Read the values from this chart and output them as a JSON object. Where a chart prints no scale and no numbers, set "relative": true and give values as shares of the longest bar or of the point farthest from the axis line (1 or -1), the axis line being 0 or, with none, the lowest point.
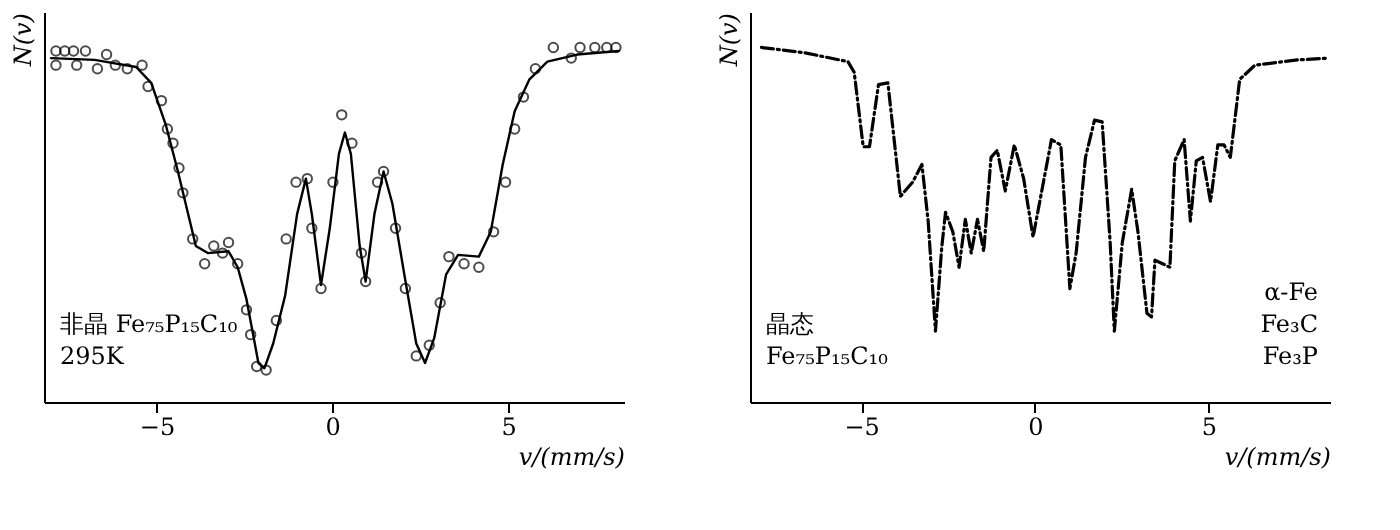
{
  "chart_data": [
    {
      "type": "scatter",
      "ylabel": "N(v)",
      "xlabel": "v/(mm/s)",
      "relative": true,
      "xlim": [
        -8.2,
        8.3
      ],
      "xticks": [
        -5,
        0,
        5
      ],
      "annotations": [
        "非晶 Fe₇₅P₁₅C₁₀\n295K"
      ],
      "series": [
        {
          "type": "scatter",
          "marker": "circle",
          "color": "#000000",
          "x": [
            -7.86,
            -7.61,
            -7.36,
            -7.02,
            -7.86,
            -7.27,
            -6.68,
            -6.42,
            -6.17,
            -5.83,
            -5.41,
            -5.24,
            -4.86,
            -4.69,
            -4.53,
            -4.36,
            -4.25,
            -3.97,
            -3.63,
            -3.37,
            -3.12,
            -2.95,
            -2.69,
            -2.44,
            -2.32,
            -2.15,
            -1.88,
            -1.59,
            -1.31,
            -1.03,
            -0.71,
            -0.58,
            -0.32,
            0.02,
            0.27,
            0.56,
            0.83,
            0.95,
            1.29,
            1.46,
            1.8,
            2.08,
            2.39,
            2.76,
            3.07,
            3.32,
            3.75,
            4.17,
            4.59,
            4.93,
            5.19,
            5.44,
            5.78,
            6.29,
            6.8,
            7.05,
            7.47,
            7.81,
            8.07
          ],
          "values": [
            0.99,
            0.99,
            0.99,
            0.99,
            0.95,
            0.95,
            0.94,
            0.98,
            0.95,
            0.94,
            0.95,
            0.89,
            0.85,
            0.77,
            0.73,
            0.66,
            0.59,
            0.46,
            0.39,
            0.44,
            0.42,
            0.45,
            0.39,
            0.26,
            0.19,
            0.1,
            0.09,
            0.23,
            0.46,
            0.62,
            0.63,
            0.49,
            0.32,
            0.62,
            0.81,
            0.73,
            0.42,
            0.34,
            0.62,
            0.65,
            0.49,
            0.32,
            0.13,
            0.16,
            0.28,
            0.41,
            0.39,
            0.38,
            0.48,
            0.62,
            0.77,
            0.86,
            0.94,
            1.0,
            0.97,
            1.0,
            1.0,
            1.0,
            1.0
          ]
        },
        {
          "type": "line",
          "color": "#000000",
          "x": [
            -8.0,
            -6.76,
            -5.58,
            -5.15,
            -4.73,
            -4.39,
            -4.05,
            -3.88,
            -3.54,
            -2.95,
            -2.69,
            -2.44,
            -2.1,
            -1.93,
            -1.68,
            -1.34,
            -1.0,
            -0.75,
            -0.58,
            -0.32,
            -0.07,
            0.19,
            0.36,
            0.53,
            0.78,
            0.95,
            1.2,
            1.46,
            1.71,
            2.05,
            2.39,
            2.64,
            2.9,
            3.24,
            3.58,
            4.17,
            4.51,
            4.85,
            5.19,
            5.61,
            6.12,
            6.97,
            8.15
          ],
          "values": [
            0.97,
            0.965,
            0.945,
            0.9,
            0.78,
            0.65,
            0.51,
            0.44,
            0.42,
            0.425,
            0.38,
            0.29,
            0.11,
            0.095,
            0.165,
            0.3,
            0.53,
            0.63,
            0.53,
            0.33,
            0.49,
            0.7,
            0.76,
            0.7,
            0.44,
            0.34,
            0.53,
            0.65,
            0.56,
            0.36,
            0.165,
            0.11,
            0.18,
            0.36,
            0.415,
            0.41,
            0.48,
            0.67,
            0.82,
            0.91,
            0.96,
            0.98,
            0.99
          ]
        }
      ]
    },
    {
      "type": "line",
      "line_style": "dashed",
      "ylabel": "N(v)",
      "xlabel": "v/(mm/s)",
      "relative": true,
      "xlim": [
        -8.2,
        8.5
      ],
      "xticks": [
        -5,
        0,
        5
      ],
      "annotations": [
        "晶态\nFe₇₅P₁₅C₁₀",
        "α-Fe\nFe₃C\nFe₃P"
      ],
      "series": [
        {
          "color": "#000000",
          "x": [
            -7.87,
            -6.63,
            -5.38,
            -5.2,
            -4.94,
            -4.76,
            -4.5,
            -4.23,
            -3.87,
            -3.52,
            -3.25,
            -3.07,
            -2.86,
            -2.68,
            -2.57,
            -2.36,
            -2.18,
            -2.0,
            -1.83,
            -1.65,
            -1.47,
            -1.26,
            -1.08,
            -0.85,
            -0.59,
            -0.32,
            -0.05,
            0.21,
            0.48,
            0.75,
            1.01,
            1.19,
            1.46,
            1.72,
            1.94,
            2.17,
            2.29,
            2.52,
            2.79,
            2.97,
            3.23,
            3.36,
            3.46,
            3.68,
            3.89,
            4.03,
            4.3,
            4.48,
            4.65,
            4.83,
            5.06,
            5.27,
            5.45,
            5.63,
            5.9,
            6.34,
            7.58,
            8.47
          ],
          "values": [
            1.0,
            0.985,
            0.96,
            0.93,
            0.72,
            0.72,
            0.895,
            0.9,
            0.58,
            0.62,
            0.67,
            0.51,
            0.2,
            0.435,
            0.535,
            0.48,
            0.38,
            0.515,
            0.42,
            0.515,
            0.425,
            0.69,
            0.71,
            0.595,
            0.725,
            0.63,
            0.465,
            0.6,
            0.74,
            0.725,
            0.32,
            0.42,
            0.69,
            0.795,
            0.79,
            0.45,
            0.2,
            0.45,
            0.6,
            0.48,
            0.25,
            0.24,
            0.4,
            0.39,
            0.38,
            0.68,
            0.74,
            0.51,
            0.68,
            0.69,
            0.565,
            0.725,
            0.725,
            0.69,
            0.91,
            0.95,
            0.965,
            0.97
          ]
        }
      ]
    }
  ]
}
